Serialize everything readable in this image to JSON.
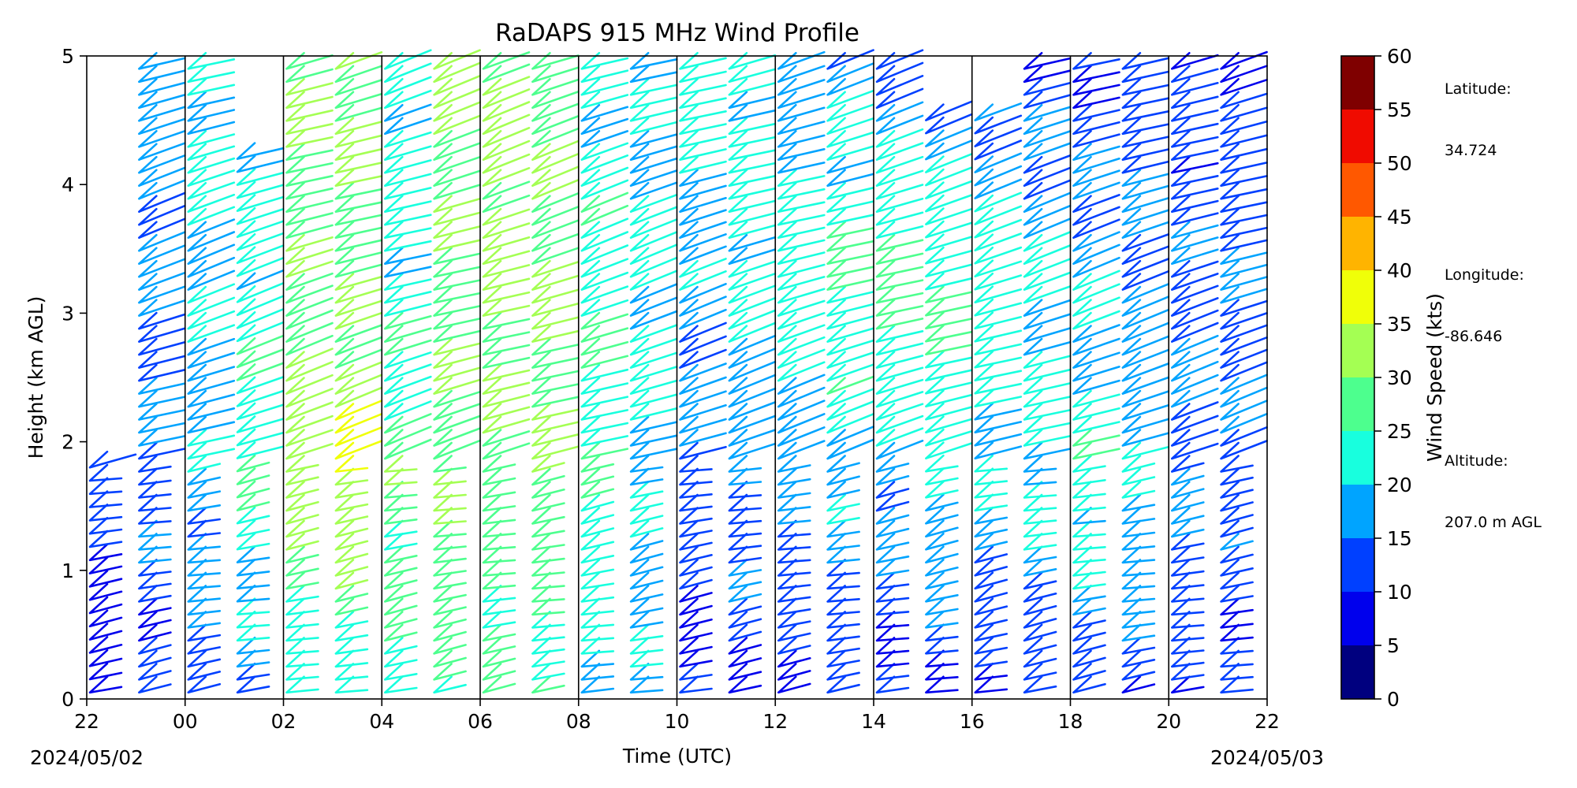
{
  "chart_data": {
    "type": "wind-barb-profile",
    "title": "RaDAPS 915 MHz Wind Profile",
    "xlabel": "Time (UTC)",
    "ylabel": "Height (km AGL)",
    "x_hours_range": [
      -2,
      22
    ],
    "x_tick_hours": [
      -2,
      0,
      2,
      4,
      6,
      8,
      10,
      12,
      14,
      16,
      18,
      20,
      22
    ],
    "x_tick_labels": [
      "22",
      "00",
      "02",
      "04",
      "06",
      "08",
      "10",
      "12",
      "14",
      "16",
      "18",
      "20",
      "22"
    ],
    "date_start": "2024/05/02",
    "date_end": "2024/05/03",
    "ylim": [
      0,
      5
    ],
    "y_ticks": [
      "0",
      "1",
      "2",
      "3",
      "4",
      "5"
    ],
    "vertical_lines_hours": [
      0,
      2,
      4,
      6,
      8,
      10,
      12,
      14,
      16,
      18,
      20
    ],
    "profile_hours": [
      -2,
      -1,
      0,
      1,
      2,
      3,
      4,
      5,
      6,
      7,
      8,
      9,
      10,
      11,
      12,
      13,
      14,
      15,
      16,
      17,
      18,
      19,
      20,
      21
    ],
    "profile_top_km": [
      1.8,
      4.9,
      4.9,
      4.2,
      4.9,
      4.9,
      4.9,
      4.9,
      4.9,
      4.9,
      4.9,
      4.9,
      4.9,
      4.9,
      4.9,
      4.9,
      4.9,
      4.5,
      4.5,
      4.9,
      4.9,
      4.9,
      4.9,
      4.9
    ],
    "speed_profiles_kts": [
      [
        6,
        12,
        18,
        14
      ],
      [
        10,
        15,
        16,
        18
      ],
      [
        14,
        18,
        20,
        22
      ],
      [
        15,
        25,
        22,
        20
      ],
      [
        20,
        34,
        28,
        30
      ],
      [
        22,
        36,
        28,
        32
      ],
      [
        24,
        28,
        22,
        22
      ],
      [
        26,
        30,
        28,
        32
      ],
      [
        26,
        28,
        32,
        32
      ],
      [
        24,
        30,
        30,
        28
      ],
      [
        20,
        24,
        24,
        20
      ],
      [
        18,
        20,
        22,
        18
      ],
      [
        8,
        14,
        18,
        24
      ],
      [
        10,
        16,
        22,
        22
      ],
      [
        8,
        16,
        24,
        16
      ],
      [
        10,
        20,
        26,
        16
      ],
      [
        8,
        18,
        28,
        12
      ],
      [
        10,
        22,
        26,
        12
      ],
      [
        8,
        20,
        24,
        10
      ],
      [
        10,
        22,
        20,
        10
      ],
      [
        12,
        24,
        18,
        10
      ],
      [
        12,
        20,
        16,
        12
      ],
      [
        10,
        16,
        14,
        10
      ],
      [
        10,
        14,
        14,
        10
      ]
    ],
    "colorbar": {
      "label": "Wind Speed (kts)",
      "bounds": [
        0,
        5,
        10,
        15,
        20,
        25,
        30,
        35,
        40,
        45,
        50,
        55,
        60
      ],
      "tick_labels": [
        "0",
        "5",
        "10",
        "15",
        "20",
        "25",
        "30",
        "35",
        "40",
        "45",
        "50",
        "55",
        "60"
      ],
      "colors": [
        "#00007f",
        "#0000ed",
        "#0040ff",
        "#00a4ff",
        "#18ffde",
        "#4dff8e",
        "#a4ff53",
        "#f0ff08",
        "#ffb400",
        "#ff5800",
        "#f00b00",
        "#7f0000"
      ]
    }
  },
  "station": {
    "lat_label": "Latitude:",
    "lat_value": "34.724",
    "lon_label": "Longitude:",
    "lon_value": "-86.646",
    "alt_label": "Altitude:",
    "alt_value": "207.0 m AGL"
  }
}
